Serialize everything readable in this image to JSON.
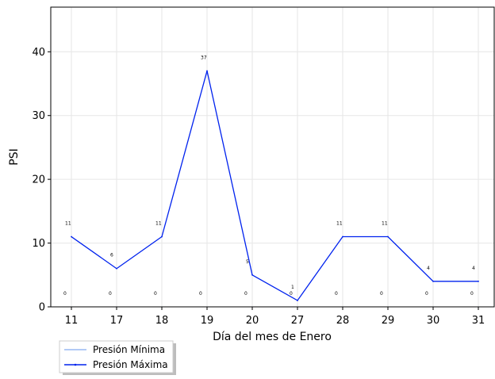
{
  "chart_data": {
    "type": "line",
    "categories": [
      "11",
      "17",
      "18",
      "19",
      "20",
      "27",
      "28",
      "29",
      "30",
      "31"
    ],
    "series": [
      {
        "name": "Presión Mínima",
        "color": "#6495ed",
        "values": [
          0,
          0,
          0,
          0,
          0,
          0,
          0,
          0,
          0,
          0
        ]
      },
      {
        "name": "Presión Máxima",
        "color": "#0022ee",
        "values": [
          11,
          6,
          11,
          37,
          5,
          1,
          11,
          11,
          4,
          4
        ]
      }
    ],
    "xlabel": "Día del mes de  Enero",
    "ylabel": "PSI",
    "ylim": [
      0,
      47
    ],
    "yticks": [
      0,
      10,
      20,
      30,
      40
    ],
    "grid": true,
    "legend": "bottom-left-outside"
  }
}
